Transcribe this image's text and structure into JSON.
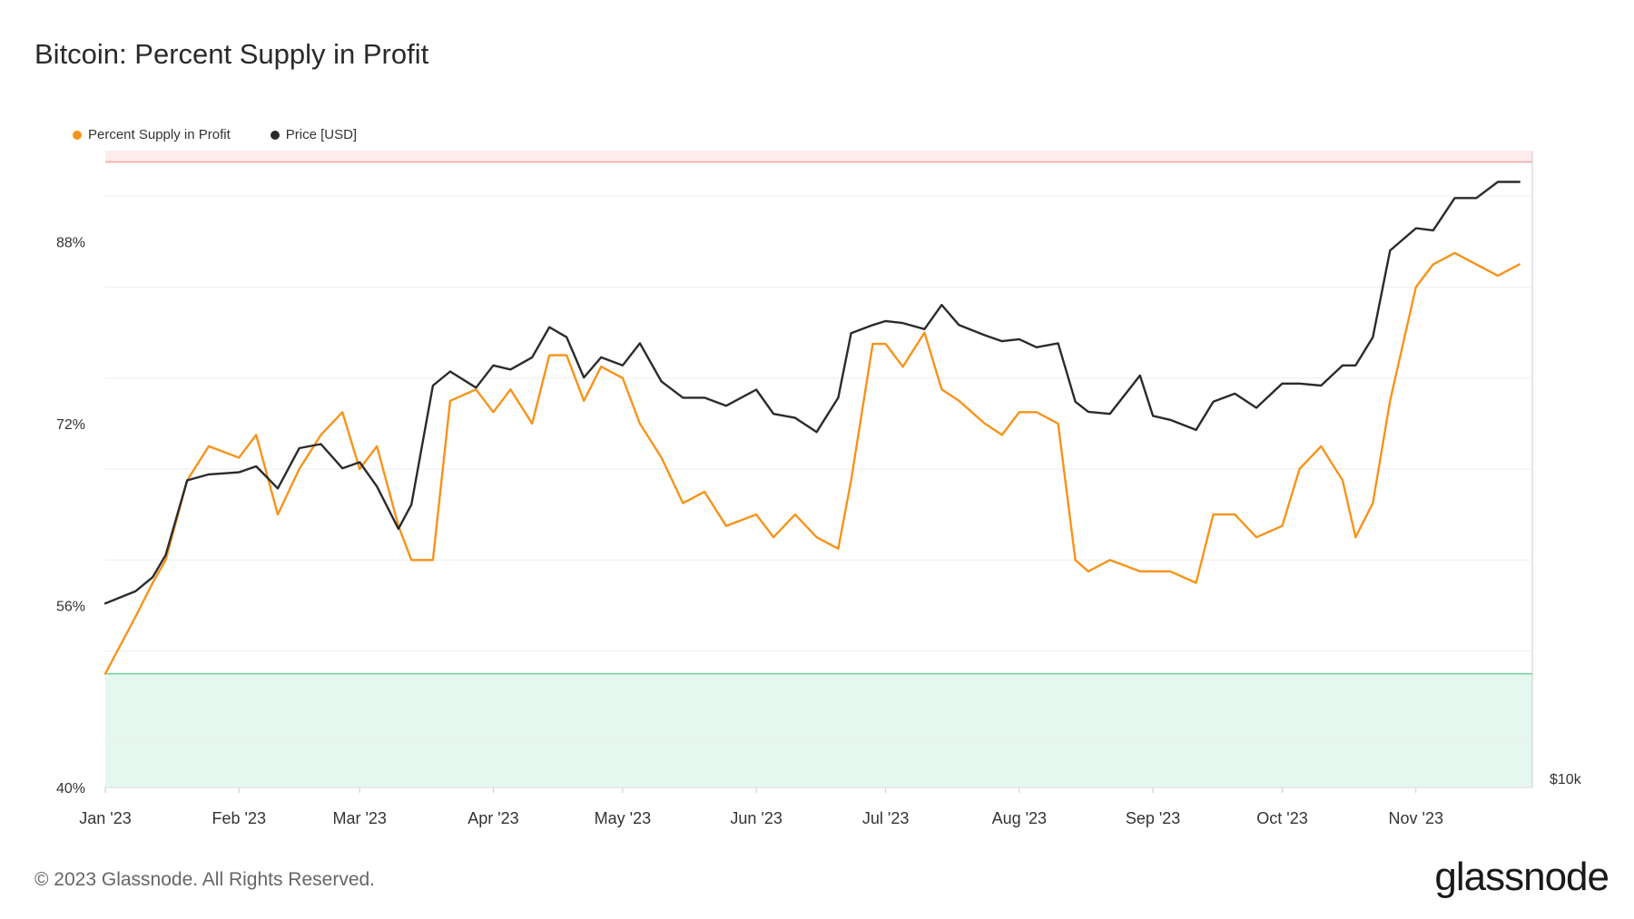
{
  "chart_data": {
    "type": "line",
    "title": "Bitcoin: Percent Supply in Profit",
    "legend": [
      "Percent Supply in Profit",
      "Price [USD]"
    ],
    "legend_placement": "top-left",
    "x_tick_labels": [
      "Jan '23",
      "Feb '23",
      "Mar '23",
      "Apr '23",
      "May '23",
      "Jun '23",
      "Jul '23",
      "Aug '23",
      "Sep '23",
      "Oct '23",
      "Nov '23"
    ],
    "y_tick_labels": [
      "88%",
      "72%",
      "56%",
      "40%"
    ],
    "ylim": [
      40,
      96
    ],
    "right_axis_label": "$10k",
    "bands": {
      "upper_threshold": 95,
      "lower_threshold": 50
    },
    "series": [
      {
        "name": "Percent Supply in Profit",
        "color": "#f7931a",
        "x": [
          "2023-01-01",
          "2023-01-08",
          "2023-01-12",
          "2023-01-15",
          "2023-01-20",
          "2023-01-25",
          "2023-02-01",
          "2023-02-05",
          "2023-02-10",
          "2023-02-15",
          "2023-02-20",
          "2023-02-25",
          "2023-03-01",
          "2023-03-05",
          "2023-03-10",
          "2023-03-13",
          "2023-03-18",
          "2023-03-22",
          "2023-03-28",
          "2023-04-01",
          "2023-04-05",
          "2023-04-10",
          "2023-04-14",
          "2023-04-18",
          "2023-04-22",
          "2023-04-26",
          "2023-05-01",
          "2023-05-05",
          "2023-05-10",
          "2023-05-15",
          "2023-05-20",
          "2023-05-25",
          "2023-06-01",
          "2023-06-05",
          "2023-06-10",
          "2023-06-15",
          "2023-06-20",
          "2023-06-23",
          "2023-06-28",
          "2023-07-01",
          "2023-07-05",
          "2023-07-10",
          "2023-07-14",
          "2023-07-18",
          "2023-07-24",
          "2023-07-28",
          "2023-08-01",
          "2023-08-05",
          "2023-08-10",
          "2023-08-14",
          "2023-08-17",
          "2023-08-22",
          "2023-08-29",
          "2023-09-01",
          "2023-09-05",
          "2023-09-11",
          "2023-09-15",
          "2023-09-20",
          "2023-09-25",
          "2023-10-01",
          "2023-10-05",
          "2023-10-10",
          "2023-10-15",
          "2023-10-18",
          "2023-10-22",
          "2023-10-26",
          "2023-11-01",
          "2023-11-05",
          "2023-11-10",
          "2023-11-15",
          "2023-11-20",
          "2023-11-25"
        ],
        "values": [
          50,
          55,
          58,
          60,
          67,
          70,
          69,
          71,
          64,
          68,
          71,
          73,
          68,
          70,
          63,
          60,
          60,
          74,
          75,
          73,
          75,
          72,
          78,
          78,
          74,
          77,
          76,
          72,
          69,
          65,
          66,
          63,
          64,
          62,
          64,
          62,
          61,
          67,
          79,
          79,
          77,
          80,
          75,
          74,
          72,
          71,
          73,
          73,
          72,
          60,
          59,
          60,
          59,
          59,
          59,
          58,
          64,
          64,
          62,
          63,
          68,
          70,
          67,
          62,
          65,
          74,
          84,
          86,
          87,
          86,
          85,
          86
        ],
        "unit": "%"
      },
      {
        "name": "Price [USD]",
        "color": "#2b2b2b",
        "x": [
          "2023-01-01",
          "2023-01-08",
          "2023-01-12",
          "2023-01-15",
          "2023-01-20",
          "2023-01-25",
          "2023-02-01",
          "2023-02-05",
          "2023-02-10",
          "2023-02-15",
          "2023-02-20",
          "2023-02-25",
          "2023-03-01",
          "2023-03-05",
          "2023-03-10",
          "2023-03-13",
          "2023-03-18",
          "2023-03-22",
          "2023-03-28",
          "2023-04-01",
          "2023-04-05",
          "2023-04-10",
          "2023-04-14",
          "2023-04-18",
          "2023-04-22",
          "2023-04-26",
          "2023-05-01",
          "2023-05-05",
          "2023-05-10",
          "2023-05-15",
          "2023-05-20",
          "2023-05-25",
          "2023-06-01",
          "2023-06-05",
          "2023-06-10",
          "2023-06-15",
          "2023-06-20",
          "2023-06-23",
          "2023-06-28",
          "2023-07-01",
          "2023-07-05",
          "2023-07-10",
          "2023-07-14",
          "2023-07-18",
          "2023-07-24",
          "2023-07-28",
          "2023-08-01",
          "2023-08-05",
          "2023-08-10",
          "2023-08-14",
          "2023-08-17",
          "2023-08-22",
          "2023-08-29",
          "2023-09-01",
          "2023-09-05",
          "2023-09-11",
          "2023-09-15",
          "2023-09-20",
          "2023-09-25",
          "2023-10-01",
          "2023-10-05",
          "2023-10-10",
          "2023-10-15",
          "2023-10-18",
          "2023-10-22",
          "2023-10-26",
          "2023-11-01",
          "2023-11-05",
          "2023-11-10",
          "2023-11-15",
          "2023-11-20",
          "2023-11-25"
        ],
        "values": [
          16600,
          17200,
          17900,
          19000,
          22700,
          23000,
          23100,
          23400,
          22300,
          24300,
          24500,
          23300,
          23600,
          22400,
          20300,
          21500,
          27400,
          28100,
          27300,
          28400,
          28200,
          28800,
          30300,
          29800,
          27800,
          28800,
          28400,
          29500,
          27600,
          26800,
          26800,
          26400,
          27200,
          26000,
          25800,
          25100,
          26800,
          30000,
          30400,
          30600,
          30500,
          30200,
          31400,
          30400,
          29900,
          29600,
          29700,
          29300,
          29500,
          26600,
          26100,
          26000,
          27900,
          25900,
          25700,
          25200,
          26600,
          27000,
          26300,
          27500,
          27500,
          27400,
          28400,
          28400,
          29800,
          34100,
          35200,
          35100,
          36700,
          36700,
          37500,
          37500
        ],
        "unit": "USD"
      }
    ]
  },
  "footer": {
    "copyright": "© 2023 Glassnode. All Rights Reserved.",
    "brand": "glassnode"
  },
  "colors": {
    "profit": "#f7931a",
    "price": "#2b2b2b",
    "top_band": "#fdecec",
    "top_line": "#f2a3a3",
    "bottom_band": "#e6f7ef",
    "bottom_line": "#6fcf9e",
    "grid": "#eeeeee"
  }
}
